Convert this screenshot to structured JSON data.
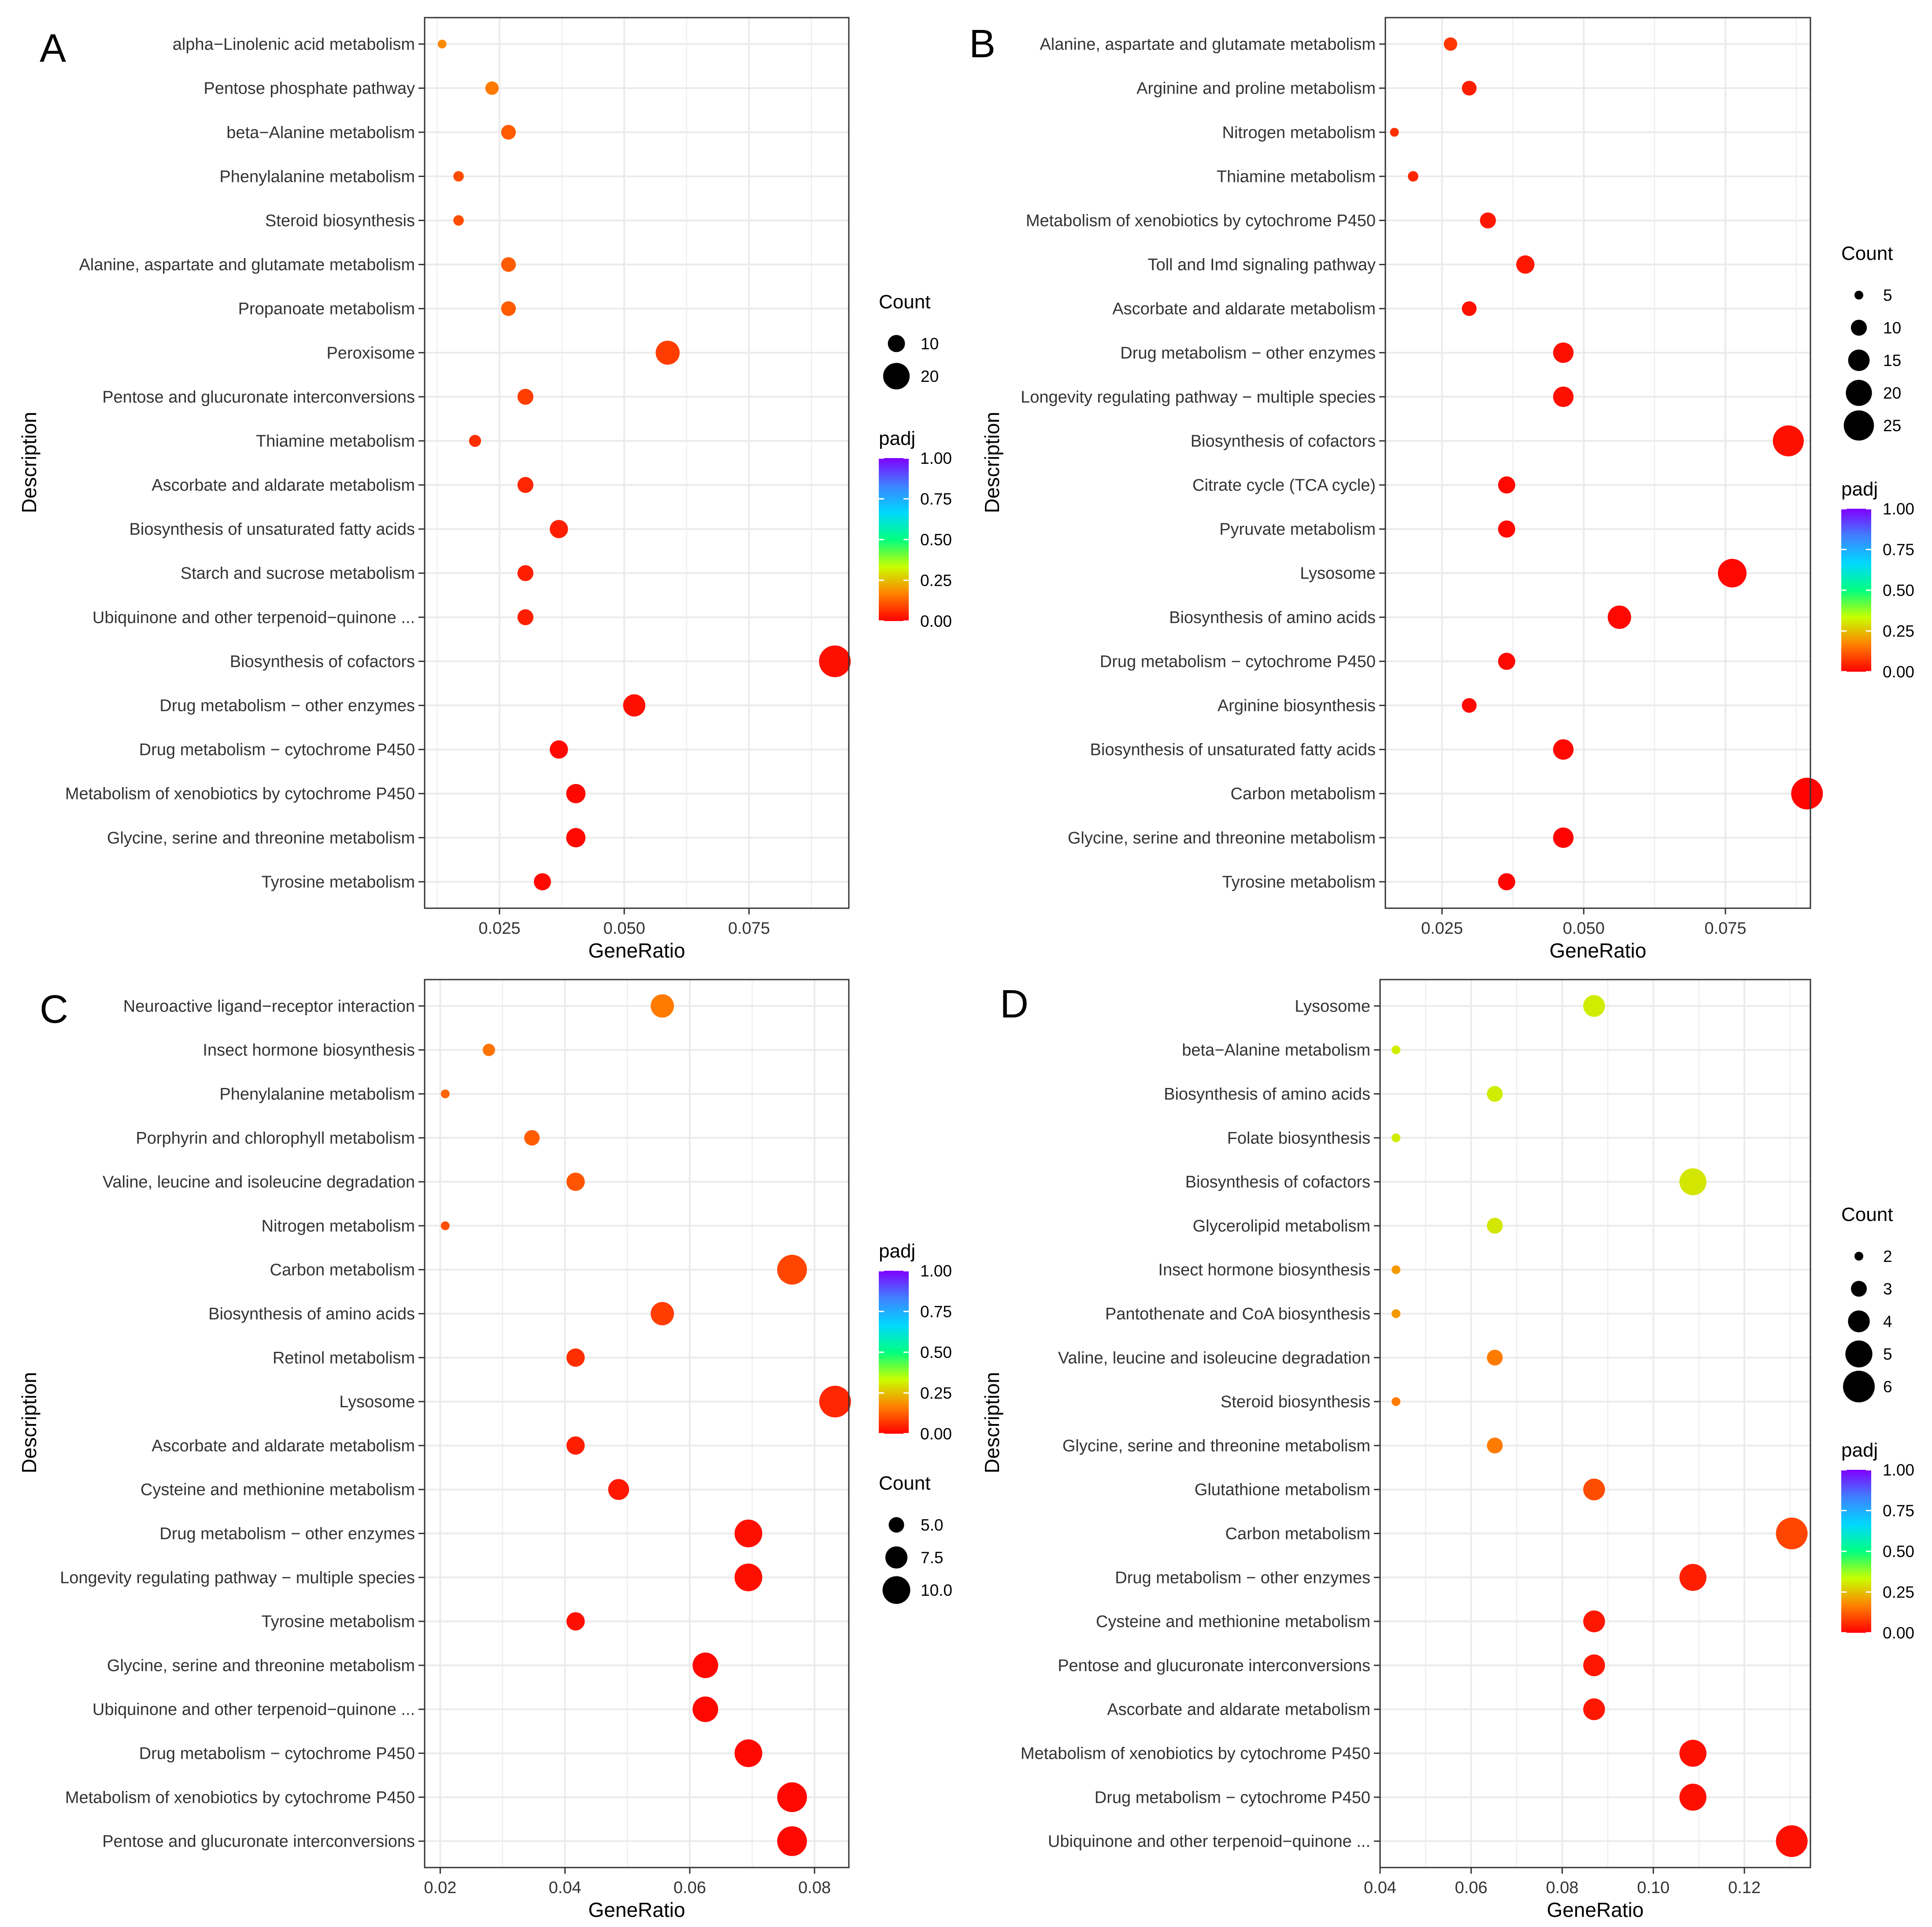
{
  "figure": {
    "panel_letters": [
      "A",
      "B",
      "C",
      "D"
    ]
  },
  "chart_data": [
    {
      "panel": "A",
      "type": "scatter",
      "xlabel": "GeneRatio",
      "ylabel": "Description",
      "xlim": [
        0.01,
        0.095
      ],
      "xticks": [
        0.025,
        0.05,
        0.075
      ],
      "xtick_labels": [
        "0.025",
        "0.050",
        "0.075"
      ],
      "categories": [
        "alpha−Linolenic acid metabolism",
        "Pentose phosphate pathway",
        "beta−Alanine metabolism",
        "Phenylalanine metabolism",
        "Steroid biosynthesis",
        "Alanine, aspartate and glutamate metabolism",
        "Propanoate metabolism",
        "Peroxisome",
        "Pentose and glucuronate interconversions",
        "Thiamine metabolism",
        "Ascorbate and aldarate metabolism",
        "Biosynthesis of unsaturated fatty acids",
        "Starch and sucrose metabolism",
        "Ubiquinone and other terpenoid−quinone ...",
        "Biosynthesis of cofactors",
        "Drug metabolism − other enzymes",
        "Drug metabolism − cytochrome P450",
        "Metabolism of xenobiotics by cytochrome P450",
        "Glycine, serine and threonine metabolism",
        "Tyrosine metabolism"
      ],
      "gene_ratio": [
        0.0135,
        0.0235,
        0.0268,
        0.0168,
        0.0168,
        0.0268,
        0.0268,
        0.0587,
        0.0302,
        0.0201,
        0.0302,
        0.0369,
        0.0302,
        0.0302,
        0.0922,
        0.052,
        0.0369,
        0.0403,
        0.0403,
        0.0336
      ],
      "count": [
        4,
        7,
        8,
        5,
        5,
        8,
        8,
        17,
        9,
        6,
        9,
        11,
        9,
        9,
        27,
        15,
        11,
        12,
        12,
        10
      ],
      "padj": [
        0.18,
        0.16,
        0.12,
        0.1,
        0.1,
        0.12,
        0.12,
        0.08,
        0.08,
        0.06,
        0.05,
        0.04,
        0.04,
        0.04,
        0.02,
        0.02,
        0.01,
        0.01,
        0.01,
        0.01
      ],
      "size_legend": {
        "title": "Count",
        "values": [
          10,
          20
        ],
        "labels": [
          "10",
          "20"
        ],
        "min": 4,
        "max": 27
      },
      "color_legend": {
        "title": "padj",
        "ticks": [
          1.0,
          0.75,
          0.5,
          0.25,
          0.0
        ],
        "labels": [
          "1.00",
          "0.75",
          "0.50",
          "0.25",
          "0.00"
        ]
      },
      "legend_order": [
        "size",
        "color"
      ]
    },
    {
      "panel": "B",
      "type": "scatter",
      "xlabel": "GeneRatio",
      "ylabel": "Description",
      "xlim": [
        0.015,
        0.09
      ],
      "xticks": [
        0.025,
        0.05,
        0.075
      ],
      "xtick_labels": [
        "0.025",
        "0.050",
        "0.075"
      ],
      "categories": [
        "Alanine, aspartate and glutamate metabolism",
        "Arginine and proline metabolism",
        "Nitrogen metabolism",
        "Thiamine metabolism",
        "Metabolism of xenobiotics by cytochrome P450",
        "Toll and Imd signaling pathway",
        "Ascorbate and aldarate metabolism",
        "Drug metabolism − other enzymes",
        "Longevity regulating pathway − multiple species",
        "Biosynthesis of cofactors",
        "Citrate cycle (TCA cycle)",
        "Pyruvate metabolism",
        "Lysosome",
        "Biosynthesis of amino acids",
        "Drug metabolism − cytochrome P450",
        "Arginine biosynthesis",
        "Biosynthesis of unsaturated fatty acids",
        "Carbon metabolism",
        "Glycine, serine and threonine metabolism",
        "Tyrosine metabolism"
      ],
      "gene_ratio": [
        0.0265,
        0.0298,
        0.0166,
        0.0199,
        0.0331,
        0.0397,
        0.0298,
        0.0464,
        0.0464,
        0.0861,
        0.0364,
        0.0364,
        0.0762,
        0.0563,
        0.0364,
        0.0298,
        0.0464,
        0.0894,
        0.0464,
        0.0364
      ],
      "count": [
        8,
        9,
        5,
        6,
        10,
        12,
        9,
        14,
        14,
        26,
        11,
        11,
        23,
        17,
        11,
        9,
        14,
        27,
        14,
        11
      ],
      "padj": [
        0.07,
        0.04,
        0.06,
        0.05,
        0.03,
        0.03,
        0.02,
        0.02,
        0.02,
        0.02,
        0.01,
        0.01,
        0.01,
        0.01,
        0.01,
        0.01,
        0.01,
        0.005,
        0.005,
        0.005
      ],
      "size_legend": {
        "title": "Count",
        "values": [
          5,
          10,
          15,
          20,
          25
        ],
        "labels": [
          "5",
          "10",
          "15",
          "20",
          "25"
        ],
        "min": 5,
        "max": 27
      },
      "color_legend": {
        "title": "padj",
        "ticks": [
          1.0,
          0.75,
          0.5,
          0.25,
          0.0
        ],
        "labels": [
          "1.00",
          "0.75",
          "0.50",
          "0.25",
          "0.00"
        ]
      },
      "legend_order": [
        "size",
        "color"
      ]
    },
    {
      "panel": "C",
      "type": "scatter",
      "xlabel": "GeneRatio",
      "ylabel": "Description",
      "xlim": [
        0.0175,
        0.0855
      ],
      "xticks": [
        0.02,
        0.04,
        0.06,
        0.08
      ],
      "xtick_labels": [
        "0.02",
        "0.04",
        "0.06",
        "0.08"
      ],
      "categories": [
        "Neuroactive ligand−receptor interaction",
        "Insect hormone biosynthesis",
        "Phenylalanine metabolism",
        "Porphyrin and chlorophyll metabolism",
        "Valine, leucine and isoleucine degradation",
        "Nitrogen metabolism",
        "Carbon metabolism",
        "Biosynthesis of amino acids",
        "Retinol metabolism",
        "Lysosome",
        "Ascorbate and aldarate metabolism",
        "Cysteine and methionine metabolism",
        "Drug metabolism − other enzymes",
        "Longevity regulating pathway − multiple species",
        "Tyrosine metabolism",
        "Glycine, serine and threonine metabolism",
        "Ubiquinone and other terpenoid−quinone ...",
        "Drug metabolism − cytochrome P450",
        "Metabolism of xenobiotics by cytochrome P450",
        "Pentose and glucuronate interconversions"
      ],
      "gene_ratio": [
        0.0556,
        0.0278,
        0.0208,
        0.0347,
        0.0417,
        0.0208,
        0.0764,
        0.0556,
        0.0417,
        0.0833,
        0.0417,
        0.0486,
        0.0694,
        0.0694,
        0.0417,
        0.0625,
        0.0625,
        0.0694,
        0.0764,
        0.0764
      ],
      "count": [
        8,
        4,
        3,
        5,
        6,
        3,
        11,
        8,
        6,
        12,
        6,
        7,
        10,
        10,
        6,
        9,
        9,
        10,
        11,
        11
      ],
      "padj": [
        0.16,
        0.15,
        0.13,
        0.12,
        0.11,
        0.1,
        0.09,
        0.08,
        0.06,
        0.05,
        0.04,
        0.03,
        0.02,
        0.02,
        0.02,
        0.01,
        0.01,
        0.01,
        0.01,
        0.01
      ],
      "size_legend": {
        "title": "Count",
        "values": [
          5.0,
          7.5,
          10.0
        ],
        "labels": [
          "5.0",
          "7.5",
          "10.0"
        ],
        "min": 3,
        "max": 12
      },
      "color_legend": {
        "title": "padj",
        "ticks": [
          1.0,
          0.75,
          0.5,
          0.25,
          0.0
        ],
        "labels": [
          "1.00",
          "0.75",
          "0.50",
          "0.25",
          "0.00"
        ]
      },
      "legend_order": [
        "color",
        "size"
      ]
    },
    {
      "panel": "D",
      "type": "scatter",
      "xlabel": "GeneRatio",
      "ylabel": "Description",
      "xlim": [
        0.04,
        0.1345
      ],
      "xticks": [
        0.04,
        0.06,
        0.08,
        0.1,
        0.12
      ],
      "xtick_labels": [
        "0.04",
        "0.06",
        "0.08",
        "0.10",
        "0.12"
      ],
      "categories": [
        "Lysosome",
        "beta−Alanine metabolism",
        "Biosynthesis of amino acids",
        "Folate biosynthesis",
        "Biosynthesis of cofactors",
        "Glycerolipid metabolism",
        "Insect hormone biosynthesis",
        "Pantothenate and CoA biosynthesis",
        "Valine, leucine and isoleucine degradation",
        "Steroid biosynthesis",
        "Glycine, serine and threonine metabolism",
        "Glutathione metabolism",
        "Carbon metabolism",
        "Drug metabolism − other enzymes",
        "Cysteine and methionine metabolism",
        "Pentose and glucuronate interconversions",
        "Ascorbate and aldarate metabolism",
        "Metabolism of xenobiotics by cytochrome P450",
        "Drug metabolism − cytochrome P450",
        "Ubiquinone and other terpenoid−quinone ..."
      ],
      "gene_ratio": [
        0.087,
        0.0435,
        0.0652,
        0.0435,
        0.1087,
        0.0652,
        0.0435,
        0.0435,
        0.0652,
        0.0435,
        0.0652,
        0.087,
        0.1304,
        0.1087,
        0.087,
        0.087,
        0.087,
        0.1087,
        0.1087,
        0.1304
      ],
      "count": [
        4,
        2,
        3,
        2,
        5,
        3,
        2,
        2,
        3,
        2,
        3,
        4,
        6,
        5,
        4,
        4,
        4,
        5,
        5,
        6
      ],
      "padj": [
        0.31,
        0.31,
        0.31,
        0.31,
        0.3,
        0.3,
        0.2,
        0.2,
        0.16,
        0.16,
        0.16,
        0.1,
        0.09,
        0.04,
        0.03,
        0.03,
        0.03,
        0.02,
        0.02,
        0.02
      ],
      "size_legend": {
        "title": "Count",
        "values": [
          2,
          3,
          4,
          5,
          6
        ],
        "labels": [
          "2",
          "3",
          "4",
          "5",
          "6"
        ],
        "min": 2,
        "max": 6
      },
      "color_legend": {
        "title": "padj",
        "ticks": [
          1.0,
          0.75,
          0.5,
          0.25,
          0.0
        ],
        "labels": [
          "1.00",
          "0.75",
          "0.50",
          "0.25",
          "0.00"
        ]
      },
      "legend_order": [
        "size",
        "color"
      ]
    }
  ],
  "colors": {
    "grid": "#ebebeb",
    "panel_border": "#333333",
    "padj_scale": [
      "#ff0000",
      "#ff8000",
      "#c8ff00",
      "#00ff80",
      "#00d8ff",
      "#4080ff",
      "#8000ff"
    ]
  }
}
